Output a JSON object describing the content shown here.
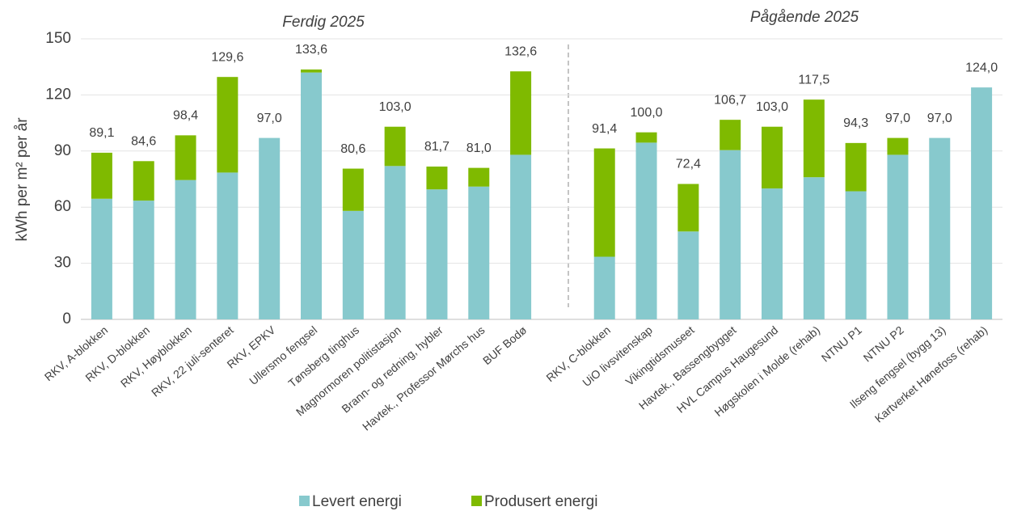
{
  "chart_data": {
    "type": "stacked_bar",
    "y_label": "kWh per m² per år",
    "group_labels": [
      "Ferdig 2025",
      "Pågående 2025"
    ],
    "categories": [
      "RKV, A-blokken",
      "RKV, D-blokken",
      "RKV, Høyblokken",
      "RKV, 22 juli-senteret",
      "RKV, EPKV",
      "Ullersmo fengsel",
      "Tønsberg tinghus",
      "Magnormoren politistasjon",
      "Brann- og redning, hybler",
      "Havtek., Professor Mørchs hus",
      "BUF Bodø",
      null,
      "RKV, C-blokken",
      "UiO livsvitenskap",
      "Vikingtidsmuseet",
      "Havtek., Bassengbygget",
      "HVL Campus Haugesund",
      "Høgskolen i Molde (rehab)",
      "NTNU P1",
      "NTNU P2",
      "Ilseng fengsel (bygg 13)",
      "Kartverket Hønefoss (rehab)"
    ],
    "series": [
      {
        "name": "Levert energi",
        "color": "#87c9cd",
        "values": [
          64.5,
          63.5,
          74.5,
          78.5,
          97.0,
          132.0,
          58.0,
          82.0,
          69.5,
          71.0,
          88.0,
          null,
          33.5,
          94.5,
          47.0,
          90.5,
          70.0,
          76.0,
          68.5,
          88.0,
          97.0,
          124.0
        ]
      },
      {
        "name": "Produsert energi",
        "color": "#7fba00",
        "values": [
          24.6,
          21.1,
          23.9,
          51.1,
          0,
          1.6,
          22.6,
          21.0,
          12.2,
          10.0,
          44.6,
          null,
          57.9,
          5.5,
          25.4,
          16.2,
          33.0,
          41.5,
          25.8,
          9.0,
          0,
          0
        ]
      }
    ],
    "total_labels": [
      "89,1",
      "84,6",
      "98,4",
      "129,6",
      "97,0",
      "133,6",
      "80,6",
      "103,0",
      "81,7",
      "81,0",
      "132,6",
      null,
      "91,4",
      "100,0",
      "72,4",
      "106,7",
      "103,0",
      "117,5",
      "94,3",
      "97,0",
      "97,0",
      "124,0"
    ],
    "ylim": [
      0,
      150
    ],
    "yticks": [
      0,
      30,
      60,
      90,
      120,
      150
    ],
    "grid": true,
    "legend": "bottom"
  }
}
